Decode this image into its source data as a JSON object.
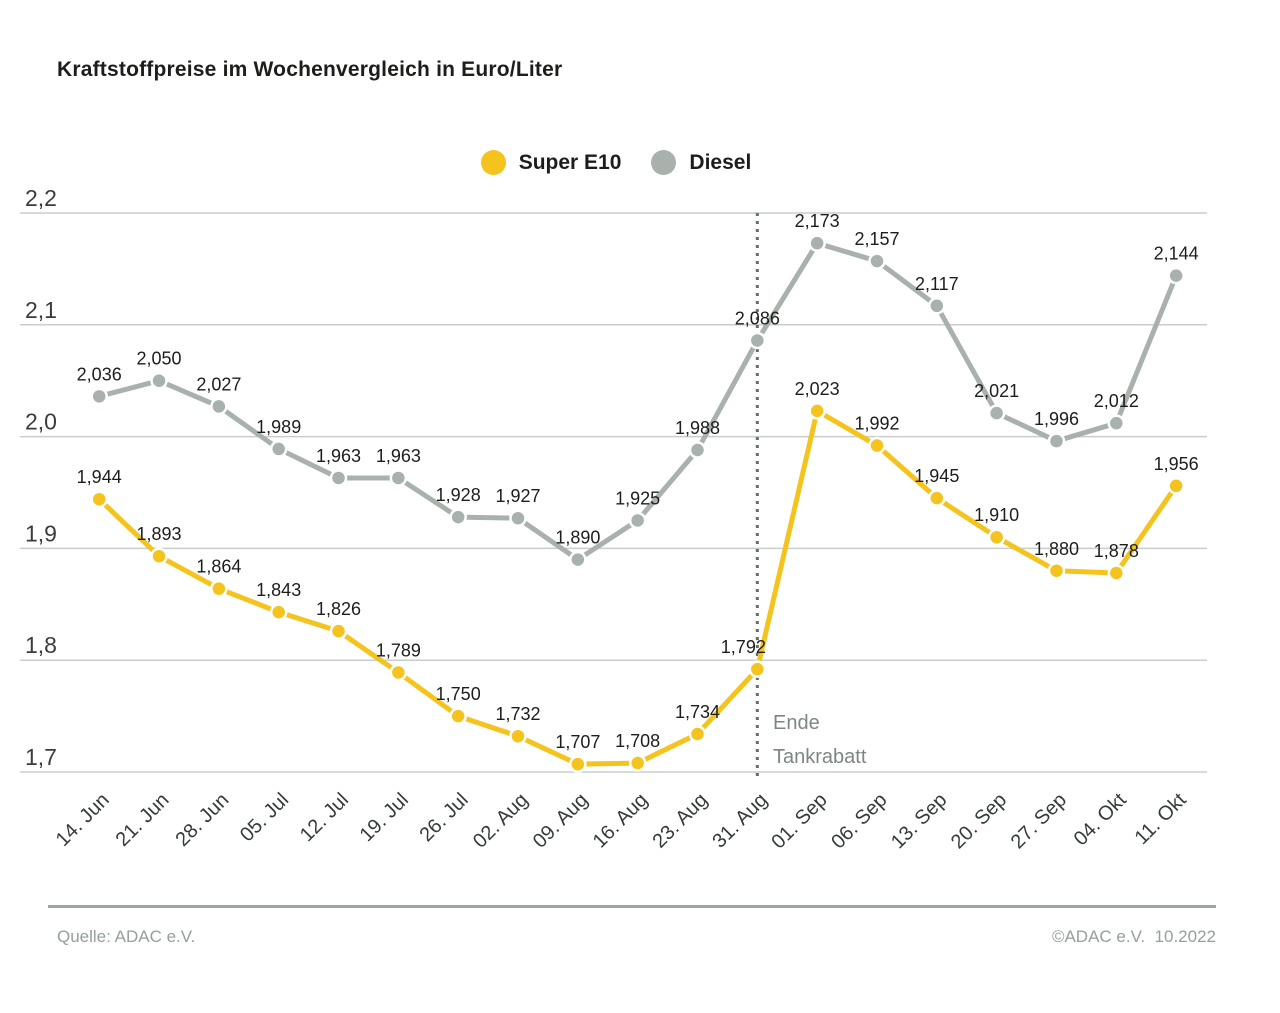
{
  "title": "Kraftstoffpreise im Wochenvergleich in Euro/Liter",
  "legend": {
    "items": [
      {
        "label": "Super E10",
        "color": "#F5C31D"
      },
      {
        "label": "Diesel",
        "color": "#A9B1AD"
      }
    ]
  },
  "annotation": {
    "line1": "Ende",
    "line2": "Tankrabatt"
  },
  "footer": {
    "source": "Quelle: ADAC e.V.",
    "copyright": "©ADAC e.V.  10.2022"
  },
  "colors": {
    "super_e10": "#F5C31D",
    "diesel": "#A9B1AD",
    "grid": "#C9CECC",
    "value_text": "#1D1D1B",
    "axis_text": "#3C3C3B",
    "x_axis_text": "#343C3A",
    "vline": "#666E6B",
    "annotation_text": "#7A8783",
    "footer_text": "#93A09C",
    "footer_divider": "#9CA6A2"
  },
  "chart_data": {
    "type": "line",
    "title": "Kraftstoffpreise im Wochenvergleich in Euro/Liter",
    "categories": [
      "14. Jun",
      "21. Jun",
      "28. Jun",
      "05. Jul",
      "12. Jul",
      "19. Jul",
      "26. Jul",
      "02. Aug",
      "09. Aug",
      "16. Aug",
      "23. Aug",
      "31. Aug",
      "01. Sep",
      "06. Sep",
      "13. Sep",
      "20. Sep",
      "27. Sep",
      "04. Okt",
      "11. Okt"
    ],
    "series": [
      {
        "name": "Super E10",
        "color": "#F5C31D",
        "values": [
          1.944,
          1.893,
          1.864,
          1.843,
          1.826,
          1.789,
          1.75,
          1.732,
          1.707,
          1.708,
          1.734,
          1.792,
          2.023,
          1.992,
          1.945,
          1.91,
          1.88,
          1.878,
          1.956
        ]
      },
      {
        "name": "Diesel",
        "color": "#A9B1AD",
        "values": [
          2.036,
          2.05,
          2.027,
          1.989,
          1.963,
          1.963,
          1.928,
          1.927,
          1.89,
          1.925,
          1.988,
          2.086,
          2.173,
          2.157,
          2.117,
          2.021,
          1.996,
          2.012,
          2.144
        ]
      }
    ],
    "xlabel": "",
    "ylabel": "Euro/Liter",
    "ylim": [
      1.7,
      2.2
    ],
    "yticks": [
      2.2,
      2.1,
      2.0,
      1.9,
      1.8,
      1.7
    ],
    "decimal_separator": ",",
    "grid": true,
    "value_labels": true,
    "legend_position": "top-center",
    "vline": {
      "at_index": 11,
      "label": "Ende Tankrabatt"
    },
    "label_offsets": [
      {
        "series": 0,
        "index": 11,
        "dx": -14,
        "dy": 0
      }
    ]
  }
}
